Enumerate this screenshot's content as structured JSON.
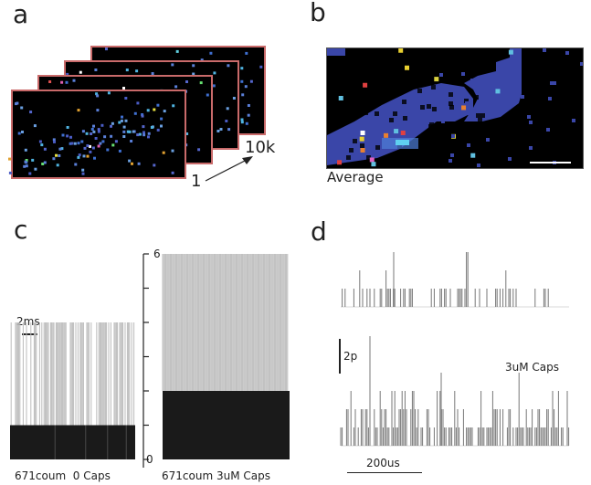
{
  "panels": {
    "a": {
      "letter": "a",
      "frames_count": 4,
      "frame_border_color": "#c96a6a",
      "arrow_start_label": "1",
      "arrow_end_label": "10k"
    },
    "b": {
      "letter": "b",
      "caption": "Average",
      "background_color": "#000000",
      "region_color": "#3a46a8",
      "scale_bar_color": "#ffffff"
    },
    "c": {
      "letter": "c",
      "time_scale_label": "2ms",
      "axis_top_label": "6",
      "axis_bottom_label": "0",
      "left_caption": "671coum  0 Caps",
      "right_caption": "671coum 3uM Caps"
    },
    "d": {
      "letter": "d",
      "amplitude_scale_label": "2p",
      "condition_label": "3uM Caps",
      "time_scale_label": "200us"
    }
  },
  "chart_data": [
    {
      "type": "bar",
      "title": "671coum  0 Caps",
      "xlabel": "",
      "ylabel": "",
      "ylim": [
        0,
        6
      ],
      "yticks": [
        0,
        1,
        2,
        3,
        4,
        5,
        6
      ],
      "description": "Raster of photon counts over time; counts mostly 1, many 2, some 3, rare 4",
      "level_counts": {
        "1": "dense (solid)",
        "2": "frequent",
        "3": "~10 bins",
        "4": "1 bin"
      },
      "max_value": 4
    },
    {
      "type": "bar",
      "title": "671coum 3uM Caps",
      "xlabel": "",
      "ylabel": "",
      "ylim": [
        0,
        6
      ],
      "yticks": [
        0,
        1,
        2,
        3,
        4,
        5,
        6
      ],
      "description": "Raster of photon counts over time; counts 1-2 dense, 3 frequent, 4 many, 5 ~20 bins, 6 ~3 bins",
      "level_counts": {
        "1": "dense (solid)",
        "2": "dense (solid)",
        "3": "frequent",
        "4": "many",
        "5": "~20 bins",
        "6": "3 bins"
      },
      "max_value": 6
    },
    {
      "type": "line",
      "title": "Photon trace (control)",
      "description": "Spike trace; most events 1p, several 2p, one 3p",
      "max_value_p": 3
    },
    {
      "type": "line",
      "title": "3uM Caps",
      "description": "Spike trace; dense 1p events, many 2p, several 3p, one ~4p, one ~6p",
      "max_value_p": 6
    }
  ]
}
